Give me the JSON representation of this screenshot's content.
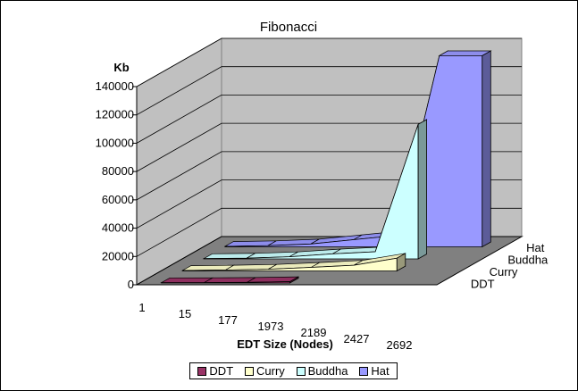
{
  "chart_data": {
    "type": "area",
    "title": "Fibonacci",
    "xlabel": "EDT Size (Nodes)",
    "ylabel": "Kb",
    "categories": [
      "1",
      "15",
      "177",
      "1973",
      "2189",
      "2427",
      "2692"
    ],
    "ylim": [
      0,
      140000
    ],
    "yticks": [
      0,
      20000,
      40000,
      60000,
      80000,
      100000,
      120000,
      140000
    ],
    "legend_position": "bottom",
    "grid": true,
    "series": [
      {
        "name": "DDT",
        "color": "#993366",
        "values": [
          150,
          250,
          420,
          900,
          null,
          null,
          null
        ]
      },
      {
        "name": "Curry",
        "color": "#FFFFCC",
        "values": [
          300,
          600,
          1200,
          2500,
          4000,
          9000,
          null
        ]
      },
      {
        "name": "Buddha",
        "color": "#CCFFFF",
        "values": [
          200,
          500,
          1500,
          3500,
          5000,
          95000,
          null
        ]
      },
      {
        "name": "Hat",
        "color": "#9999FF",
        "values": [
          300,
          800,
          2000,
          5000,
          8000,
          135000,
          135000
        ]
      }
    ]
  }
}
